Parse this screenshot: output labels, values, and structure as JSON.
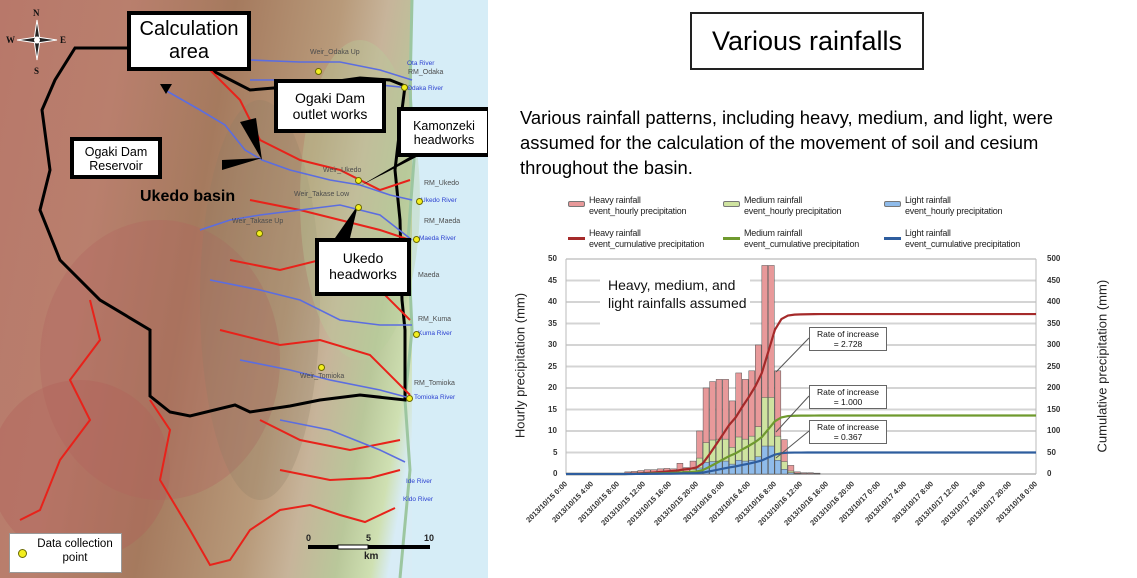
{
  "map": {
    "compass": {
      "n": "N",
      "s": "S",
      "e": "E",
      "w": "W"
    },
    "callouts": {
      "calculation_area": "Calculation area",
      "ogaki_dam_outlet": "Ogaki Dam outlet works",
      "kamonzeki": "Kamonzeki headworks",
      "ogaki_reservoir": "Ogaki Dam Reservoir",
      "ukedo_headworks": "Ukedo headworks"
    },
    "basin_label": "Ukedo basin",
    "station_labels": {
      "weir_odaka_up": "Weir_Odaka Up",
      "rm_odaka": "RM_Odaka",
      "weir_ukedo": "Weir_Ukedo",
      "weir_takase_low": "Weir_Takase Low",
      "weir_takase_up": "Weir_Takase Up",
      "rm_ukedo": "RM_Ukedo",
      "rm_maeda": "RM_Maeda",
      "maeda": "Maeda",
      "rm_kuma": "RM_Kuma",
      "weir_tomioka": "Weir_Tomioka",
      "rm_tomioka": "RM_Tomioka"
    },
    "river_labels": {
      "ota": "Ota River",
      "odaka": "Odaka River",
      "ukedo": "Ukedo River",
      "maeda": "Maeda River",
      "kuma": "Kuma River",
      "tomioka": "Tomioka River",
      "ide": "Ide River",
      "kido": "Kido River"
    },
    "legend": {
      "label": "Data collection point"
    },
    "scale": {
      "ticks": [
        "0",
        "5",
        "10"
      ],
      "unit": "km"
    }
  },
  "right": {
    "title": "Various rainfalls",
    "description": "Various rainfall patterns, including heavy, medium, and light, were assumed for the calculation of the movement of soil and cesium throughout the basin."
  },
  "colors": {
    "heavy_bar": "#e8999a",
    "medium_bar": "#cfe3a0",
    "light_bar": "#8fbbea",
    "heavy_line": "#a52a2a",
    "medium_line": "#6f9a2e",
    "light_line": "#2e5d9e"
  },
  "chart_data": {
    "type": "bar",
    "title": "",
    "annotation": "Heavy, medium, and light rainfalls assumed",
    "ylabel": "Hourly precipitation (mm)",
    "y2label": "Cumulative precipitation (mm)",
    "ylim": [
      0,
      50
    ],
    "y2lim": [
      0,
      500
    ],
    "yticks": [
      "0",
      "5",
      "10",
      "15",
      "20",
      "25",
      "30",
      "35",
      "40",
      "45",
      "50"
    ],
    "y2ticks": [
      "0",
      "50",
      "100",
      "150",
      "200",
      "250",
      "300",
      "350",
      "400",
      "450",
      "500"
    ],
    "grid": true,
    "legend_position": "top",
    "legend": [
      {
        "label1": "Heavy rainfall",
        "label2": "event_hourly precipitation",
        "kind": "bar",
        "key": "heavy_bar"
      },
      {
        "label1": "Medium rainfall",
        "label2": "event_hourly precipitation",
        "kind": "bar",
        "key": "medium_bar"
      },
      {
        "label1": "Light rainfall",
        "label2": "event_hourly precipitation",
        "kind": "bar",
        "key": "light_bar"
      },
      {
        "label1": "Heavy rainfall",
        "label2": "event_cumulative precipitation",
        "kind": "line",
        "key": "heavy_line"
      },
      {
        "label1": "Medium rainfall",
        "label2": "event_cumulative precipitation",
        "kind": "line",
        "key": "medium_line"
      },
      {
        "label1": "Light rainfall",
        "label2": "event_cumulative precipitation",
        "kind": "line",
        "key": "light_line"
      }
    ],
    "categories": [
      "2013/10/15 0:00",
      "2013/10/15 4:00",
      "2013/10/15 8:00",
      "2013/10/15 12:00",
      "2013/10/15 16:00",
      "2013/10/15 20:00",
      "2013/10/16 0:00",
      "2013/10/16 4:00",
      "2013/10/16 8:00",
      "2013/10/16 12:00",
      "2013/10/16 16:00",
      "2013/10/16 20:00",
      "2013/10/17 0:00",
      "2013/10/17 4:00",
      "2013/10/17 8:00",
      "2013/10/17 12:00",
      "2013/10/17 16:00",
      "2013/10/17 20:00",
      "2013/10/18 0:00"
    ],
    "hourly_x_hours": [
      9,
      10,
      11,
      12,
      13,
      14,
      15,
      16,
      17,
      18,
      19,
      20,
      21,
      22,
      23,
      24,
      25,
      26,
      27,
      28,
      29,
      30,
      31,
      32,
      33,
      34,
      35,
      36,
      37,
      38
    ],
    "series": [
      {
        "name": "Heavy rainfall event_hourly precipitation",
        "values": [
          0.5,
          0.6,
          0.8,
          1.0,
          1.0,
          1.2,
          1.3,
          1.2,
          2.5,
          1.5,
          3.0,
          10.0,
          20.0,
          21.5,
          22.0,
          22.0,
          17.0,
          23.5,
          22.0,
          24.0,
          30.0,
          48.5,
          48.5,
          24.0,
          8.0,
          2.0,
          0.5,
          0.3,
          0.3,
          0.2
        ]
      },
      {
        "name": "Medium rainfall event_hourly precipitation",
        "values": [
          0.2,
          0.2,
          0.3,
          0.4,
          0.4,
          0.4,
          0.5,
          0.4,
          0.9,
          0.6,
          1.1,
          3.7,
          7.3,
          7.9,
          8.1,
          8.1,
          6.2,
          8.6,
          8.1,
          8.8,
          11.0,
          17.8,
          17.8,
          8.8,
          2.9,
          0.7,
          0.2,
          0.1,
          0.1,
          0.1
        ]
      },
      {
        "name": "Light rainfall event_hourly precipitation",
        "values": [
          0.1,
          0.1,
          0.1,
          0.1,
          0.1,
          0.2,
          0.2,
          0.2,
          0.3,
          0.2,
          0.4,
          1.4,
          2.7,
          2.9,
          3.0,
          3.0,
          2.3,
          3.2,
          3.0,
          3.2,
          4.0,
          6.5,
          6.5,
          3.2,
          1.1,
          0.3,
          0.1,
          0.0,
          0.0,
          0.0
        ]
      },
      {
        "name": "Heavy rainfall event_cumulative precipitation",
        "final": 372,
        "rate_of_increase": "2.728"
      },
      {
        "name": "Medium rainfall event_cumulative precipitation",
        "final": 136,
        "rate_of_increase": "1.000"
      },
      {
        "name": "Light rainfall event_cumulative precipitation",
        "final": 50,
        "rate_of_increase": "0.367"
      }
    ],
    "rate_labels": [
      {
        "line1": "Rate of increase",
        "line2": "= 2.728"
      },
      {
        "line1": "Rate of increase",
        "line2": "= 1.000"
      },
      {
        "line1": "Rate of increase",
        "line2": "= 0.367"
      }
    ]
  }
}
